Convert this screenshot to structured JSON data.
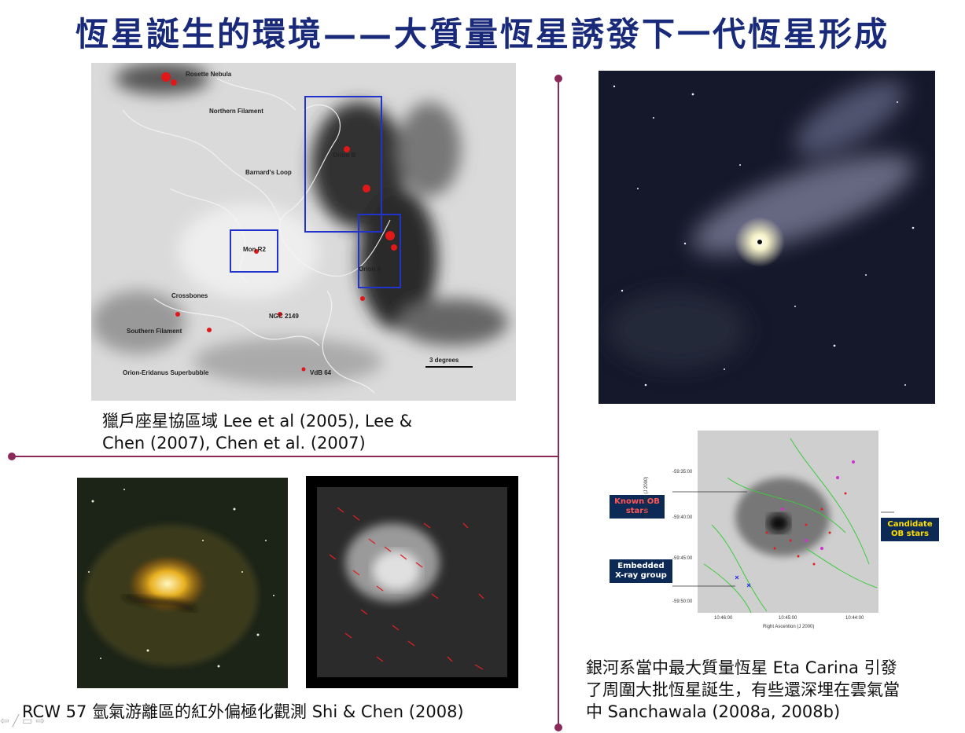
{
  "title": "恆星誕生的環境——大質量恆星誘發下一代恆星形成",
  "orion_panel": {
    "caption_line1": "獵戶座星協區域  Lee et al (2005), Lee &",
    "caption_line2": "Chen (2007), Chen et al. (2007)",
    "labels": {
      "rosette": "Rosette Nebula",
      "northern_filament": "Northern Filament",
      "barnards_loop": "Barnard's Loop",
      "orion_b": "Orion B",
      "mon_r2": "Mon R2",
      "orion_a": "Orion A",
      "crossbones": "Crossbones",
      "ngc2149": "NGC 2149",
      "southern_filament": "Southern Filament",
      "superbubble": "Orion-Eridanus Superbubble",
      "vdb64": "VdB 64",
      "scale": "3 degrees"
    }
  },
  "rcw_panel": {
    "caption": "RCW 57 氫氣游離區的紅外偏極化觀測 Shi & Chen (2008)"
  },
  "eta_panel": {
    "caption_line1": "銀河系當中最大質量恆星 Eta Carina 引發",
    "caption_line2": "了周圍大批恆星誕生，有些還深埋在雲氣當",
    "caption_line3": "中 Sanchawala (2008a, 2008b)",
    "legend": {
      "known": "Known OB stars",
      "candidate": "Candidate OB stars",
      "embedded": "Embedded X-ray group"
    },
    "axes": {
      "ylabel": "Declination (J 2000)",
      "xlabel": "Right Ascention (J 2000)",
      "yticks": [
        "-59:35:00",
        "-59:40:00",
        "-59:45:00",
        "-59:50:00"
      ],
      "xticks": [
        "10:46:00",
        "10:45:00",
        "10:44:00"
      ]
    }
  },
  "nav_icons": [
    "prev-arrow-icon",
    "pen-icon",
    "menu-icon",
    "next-arrow-icon"
  ]
}
